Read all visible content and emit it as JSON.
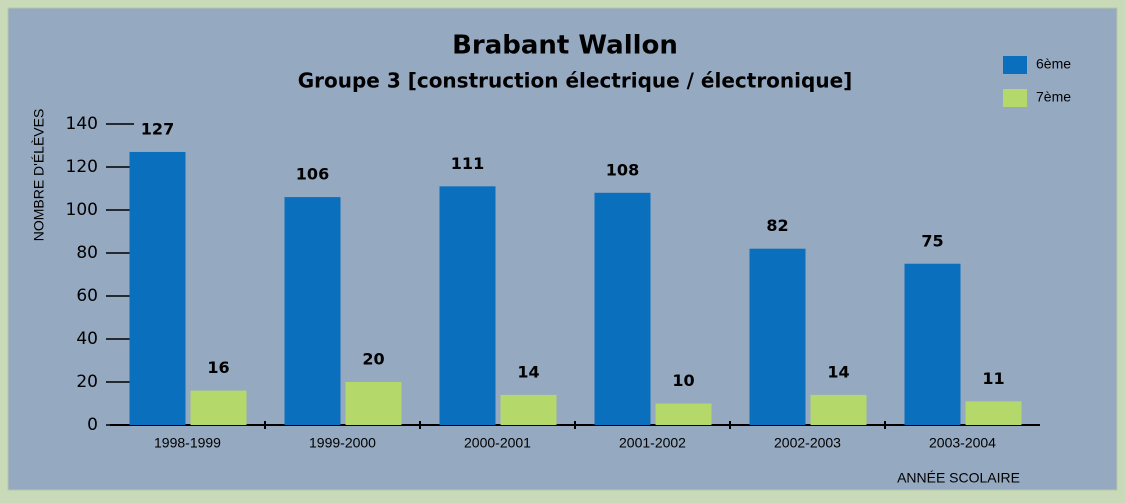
{
  "chart_data": {
    "type": "bar",
    "title": "Brabant Wallon",
    "subtitle": "Groupe 3 [construction électrique / électronique]",
    "y_label": "NOMBRE D'ÉLÈVES",
    "x_label": "ANNÉE SCOLAIRE",
    "categories": [
      "1998-1999",
      "1999-2000",
      "2000-2001",
      "2001-2002",
      "2002-2003",
      "2003-2004"
    ],
    "series": [
      {
        "name": "6ème",
        "color": "#0a6fbd",
        "values": [
          127,
          106,
          111,
          108,
          82,
          75
        ]
      },
      {
        "name": "7ème",
        "color": "#b5d86a",
        "values": [
          16,
          20,
          14,
          10,
          14,
          11
        ]
      }
    ],
    "ylim": [
      0,
      140
    ],
    "yticks": [
      0,
      20,
      40,
      60,
      80,
      100,
      120,
      140
    ],
    "legend": "top-right"
  }
}
